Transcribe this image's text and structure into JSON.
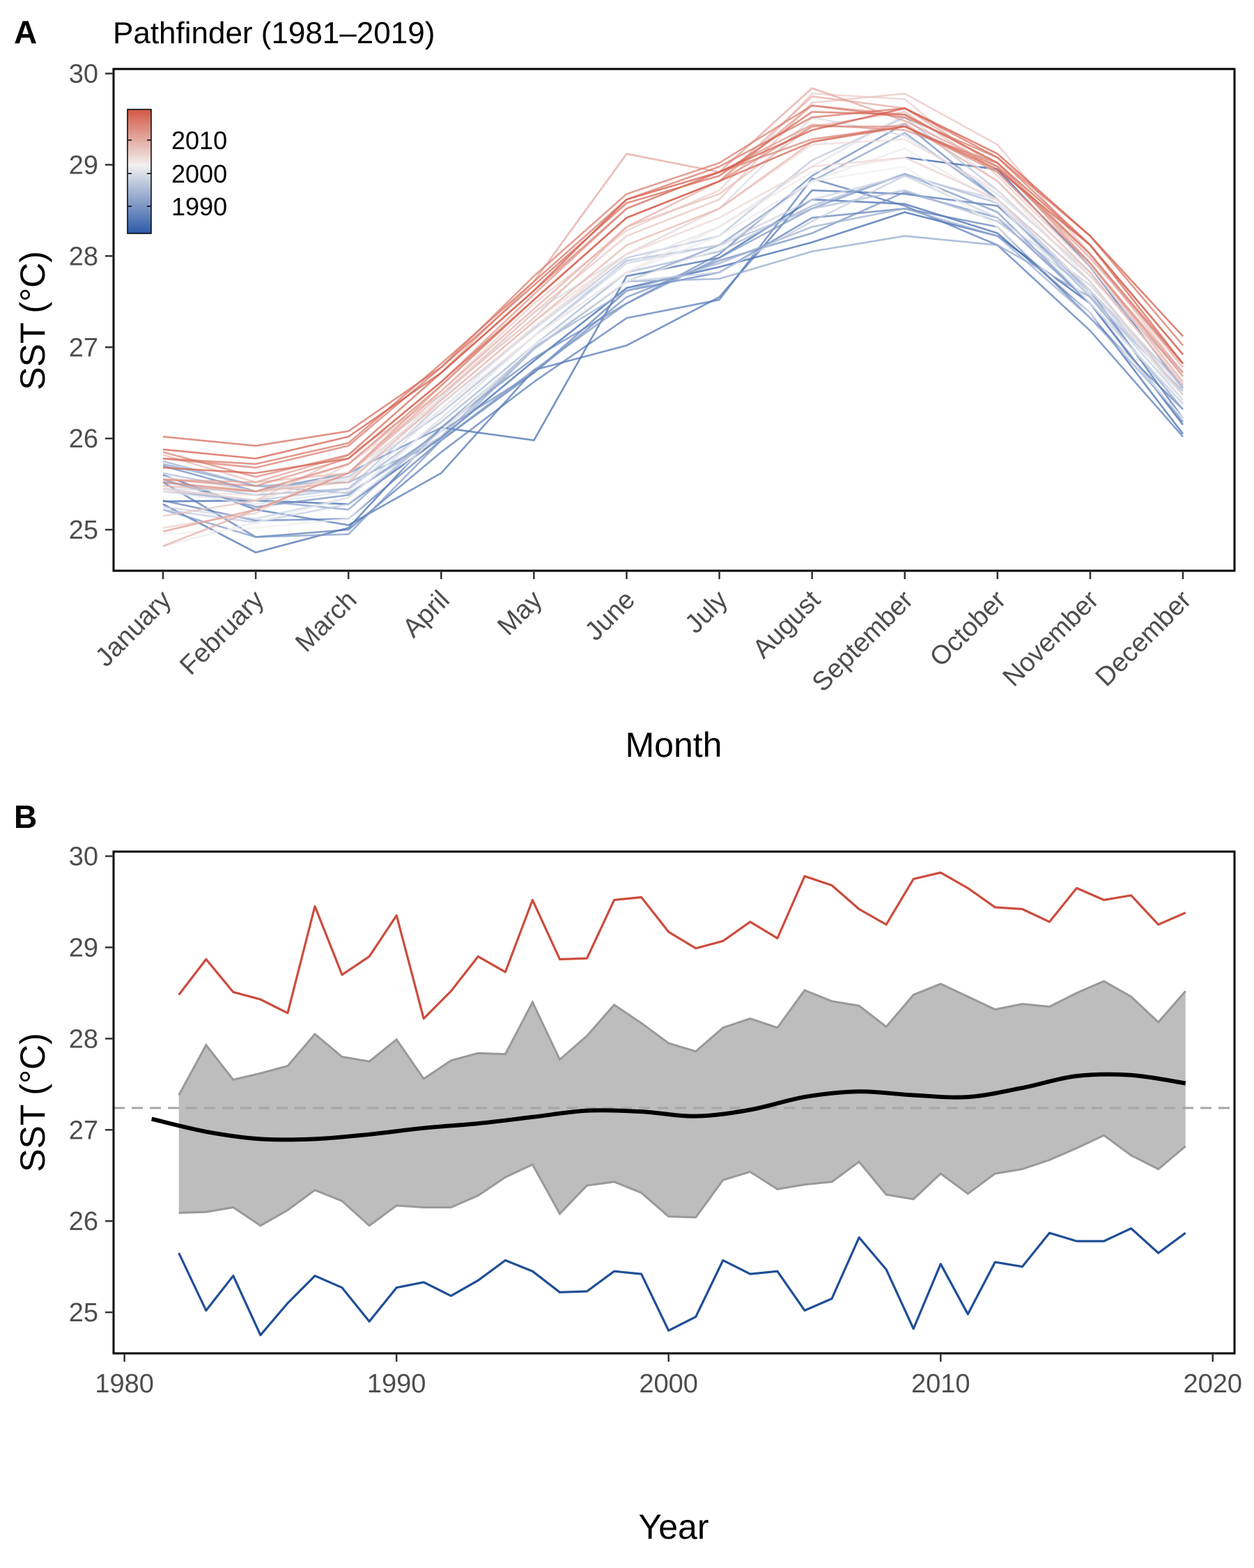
{
  "chart_data": [
    {
      "panel": "A",
      "type": "line",
      "title": "Pathfinder (1981–2019)",
      "xlabel": "Month",
      "ylabel": "SST (°C)",
      "ylim": [
        24.55,
        30.05
      ],
      "yticks": [
        25,
        26,
        27,
        28,
        29,
        30
      ],
      "categories": [
        "January",
        "February",
        "March",
        "April",
        "May",
        "June",
        "July",
        "August",
        "September",
        "October",
        "November",
        "December"
      ],
      "legend": {
        "type": "colorbar",
        "position": "top-left",
        "labels": [
          "2010",
          "2000",
          "1990"
        ],
        "low_color": "#2c5aa8",
        "mid_color": "#f2f0f0",
        "high_color": "#d35845"
      },
      "grid": false,
      "series": [
        {
          "year": 1981,
          "values": [
            null,
            null,
            null,
            null,
            null,
            null,
            null,
            null,
            29.08,
            28.95,
            27.88,
            26.55
          ]
        },
        {
          "year": 1982,
          "values": [
            25.31,
            25.32,
            25.28,
            26.01,
            26.85,
            27.65,
            27.88,
            28.15,
            28.48,
            28.22,
            27.48,
            26.15
          ]
        },
        {
          "year": 1983,
          "values": [
            25.28,
            24.75,
            25.02,
            26.12,
            25.98,
            27.78,
            27.98,
            28.62,
            28.57,
            28.25,
            27.38,
            26.05
          ]
        },
        {
          "year": 1984,
          "values": [
            25.6,
            25.22,
            25.05,
            25.62,
            26.75,
            27.02,
            27.55,
            28.72,
            28.68,
            28.55,
            27.62,
            26.22
          ]
        },
        {
          "year": 1985,
          "values": [
            25.52,
            24.92,
            25.0,
            25.85,
            26.62,
            27.32,
            27.52,
            28.85,
            28.55,
            28.12,
            27.18,
            26.02
          ]
        },
        {
          "year": 1986,
          "values": [
            25.32,
            25.1,
            25.12,
            25.98,
            26.72,
            27.62,
            27.82,
            28.42,
            28.52,
            28.32,
            27.32,
            26.32
          ]
        },
        {
          "year": 1987,
          "values": [
            25.7,
            25.42,
            25.62,
            26.12,
            26.88,
            27.48,
            28.02,
            28.88,
            29.45,
            28.62,
            27.62,
            26.48
          ]
        },
        {
          "year": 1988,
          "values": [
            25.55,
            25.25,
            25.38,
            26.08,
            26.72,
            27.55,
            27.95,
            28.25,
            28.7,
            28.42,
            27.48,
            26.18
          ]
        },
        {
          "year": 1989,
          "values": [
            25.22,
            24.92,
            24.95,
            25.98,
            26.75,
            27.48,
            27.98,
            28.52,
            28.9,
            28.48,
            27.48,
            26.38
          ]
        },
        {
          "year": 1990,
          "values": [
            25.42,
            25.32,
            25.22,
            26.12,
            26.98,
            27.72,
            28.12,
            28.82,
            29.35,
            28.62,
            27.72,
            26.48
          ]
        },
        {
          "year": 1991,
          "values": [
            25.72,
            25.48,
            25.52,
            25.98,
            26.98,
            27.72,
            27.75,
            28.05,
            28.22,
            28.12,
            27.55,
            26.32
          ]
        },
        {
          "year": 1992,
          "values": [
            25.75,
            25.48,
            25.4,
            26.02,
            27.0,
            27.62,
            27.92,
            28.32,
            28.52,
            28.22,
            27.32,
            26.22
          ]
        },
        {
          "year": 1993,
          "values": [
            25.52,
            25.38,
            25.45,
            26.18,
            27.02,
            27.82,
            28.05,
            28.55,
            28.9,
            28.58,
            27.55,
            26.52
          ]
        },
        {
          "year": 1994,
          "values": [
            25.62,
            25.42,
            25.58,
            26.28,
            27.12,
            27.95,
            28.12,
            28.52,
            28.72,
            28.38,
            27.62,
            26.58
          ]
        },
        {
          "year": 1995,
          "values": [
            25.45,
            25.32,
            25.45,
            26.38,
            27.2,
            27.98,
            28.22,
            29.05,
            29.52,
            28.72,
            27.78,
            26.72
          ]
        },
        {
          "year": 1996,
          "values": [
            25.22,
            25.08,
            25.28,
            26.08,
            26.98,
            27.72,
            27.82,
            28.38,
            28.88,
            28.62,
            27.58,
            26.42
          ]
        },
        {
          "year": 1997,
          "values": [
            25.25,
            25.12,
            25.35,
            26.22,
            27.12,
            27.92,
            28.12,
            28.62,
            28.88,
            28.42,
            27.68,
            26.55
          ]
        },
        {
          "year": 1998,
          "values": [
            25.45,
            25.42,
            25.55,
            26.45,
            27.38,
            28.02,
            28.52,
            29.52,
            29.32,
            28.68,
            27.82,
            26.58
          ]
        },
        {
          "year": 1999,
          "values": [
            25.42,
            25.28,
            25.42,
            26.32,
            27.22,
            27.92,
            28.32,
            28.98,
            29.55,
            28.82,
            27.72,
            26.42
          ]
        },
        {
          "year": 2000,
          "values": [
            24.82,
            25.08,
            25.35,
            26.22,
            27.12,
            27.82,
            28.22,
            28.82,
            29.18,
            28.58,
            27.48,
            26.38
          ]
        },
        {
          "year": 2001,
          "values": [
            24.95,
            25.02,
            25.12,
            26.08,
            27.02,
            27.72,
            28.08,
            28.82,
            28.98,
            28.32,
            27.38,
            26.22
          ]
        },
        {
          "year": 2002,
          "values": [
            25.58,
            25.42,
            25.55,
            26.32,
            27.12,
            27.82,
            28.32,
            28.92,
            29.08,
            28.62,
            27.62,
            26.48
          ]
        },
        {
          "year": 2003,
          "values": [
            25.42,
            25.38,
            25.72,
            26.42,
            27.28,
            28.02,
            28.52,
            29.22,
            29.28,
            28.72,
            27.78,
            26.62
          ]
        },
        {
          "year": 2004,
          "values": [
            25.45,
            25.32,
            25.62,
            26.38,
            27.22,
            28.02,
            28.42,
            28.98,
            29.08,
            28.62,
            27.72,
            26.48
          ]
        },
        {
          "year": 2005,
          "values": [
            25.02,
            25.18,
            25.72,
            26.52,
            27.48,
            28.28,
            28.72,
            29.78,
            29.72,
            28.88,
            27.88,
            26.62
          ]
        },
        {
          "year": 2006,
          "values": [
            25.15,
            25.32,
            25.82,
            26.48,
            27.38,
            28.22,
            28.62,
            29.68,
            29.78,
            29.22,
            28.02,
            26.72
          ]
        },
        {
          "year": 2007,
          "values": [
            25.82,
            25.52,
            25.62,
            26.48,
            27.32,
            28.32,
            28.68,
            29.42,
            29.58,
            28.92,
            27.92,
            26.62
          ]
        },
        {
          "year": 2008,
          "values": [
            25.48,
            25.42,
            25.52,
            26.42,
            27.28,
            28.12,
            28.52,
            29.25,
            29.45,
            28.82,
            27.82,
            26.58
          ]
        },
        {
          "year": 2009,
          "values": [
            24.82,
            25.22,
            25.62,
            26.52,
            27.42,
            28.32,
            28.82,
            29.75,
            29.62,
            28.98,
            28.02,
            26.78
          ]
        },
        {
          "year": 2010,
          "values": [
            25.55,
            25.52,
            25.82,
            26.72,
            27.72,
            29.12,
            28.92,
            29.84,
            29.48,
            28.98,
            27.98,
            26.82
          ]
        },
        {
          "year": 2011,
          "values": [
            24.98,
            25.22,
            25.62,
            26.58,
            27.52,
            28.42,
            28.82,
            29.65,
            29.55,
            29.02,
            27.92,
            26.72
          ]
        },
        {
          "year": 2012,
          "values": [
            25.55,
            25.48,
            25.78,
            26.62,
            27.58,
            28.52,
            28.92,
            29.44,
            29.38,
            29.02,
            28.02,
            26.82
          ]
        },
        {
          "year": 2013,
          "values": [
            25.52,
            25.42,
            25.72,
            26.58,
            27.52,
            28.42,
            28.82,
            29.42,
            29.42,
            28.92,
            27.92,
            26.68
          ]
        },
        {
          "year": 2014,
          "values": [
            25.85,
            25.58,
            25.82,
            26.72,
            27.62,
            28.52,
            28.92,
            29.28,
            29.42,
            28.98,
            28.02,
            26.82
          ]
        },
        {
          "year": 2015,
          "values": [
            25.78,
            25.68,
            25.92,
            26.78,
            27.78,
            28.68,
            29.02,
            29.65,
            29.52,
            29.08,
            28.12,
            26.92
          ]
        },
        {
          "year": 2016,
          "values": [
            25.78,
            25.72,
            25.95,
            26.82,
            27.72,
            28.62,
            28.98,
            29.52,
            29.62,
            29.08,
            28.22,
            27.02
          ]
        },
        {
          "year": 2017,
          "values": [
            26.02,
            25.92,
            26.08,
            26.78,
            27.68,
            28.58,
            28.88,
            29.58,
            29.55,
            29.02,
            28.12,
            26.92
          ]
        },
        {
          "year": 2018,
          "values": [
            25.68,
            25.62,
            25.78,
            26.62,
            27.52,
            28.42,
            28.82,
            29.25,
            29.42,
            28.95,
            28.12,
            26.82
          ]
        },
        {
          "year": 2019,
          "values": [
            25.88,
            25.78,
            26.02,
            26.72,
            27.62,
            28.62,
            28.92,
            29.38,
            29.62,
            29.12,
            28.22,
            27.12
          ]
        }
      ]
    },
    {
      "panel": "B",
      "type": "line",
      "title": "",
      "xlabel": "Year",
      "ylabel": "SST (°C)",
      "ylim": [
        24.55,
        30.05
      ],
      "yticks": [
        25,
        26,
        27,
        28,
        29,
        30
      ],
      "xlim": [
        1979.6,
        2020.8
      ],
      "xticks": [
        1980,
        1990,
        2000,
        2010,
        2020
      ],
      "grid": false,
      "x": [
        1982,
        1983,
        1984,
        1985,
        1986,
        1987,
        1988,
        1989,
        1990,
        1991,
        1992,
        1993,
        1994,
        1995,
        1996,
        1997,
        1998,
        1999,
        2000,
        2001,
        2002,
        2003,
        2004,
        2005,
        2006,
        2007,
        2008,
        2009,
        2010,
        2011,
        2012,
        2013,
        2014,
        2015,
        2016,
        2017,
        2018,
        2019
      ],
      "max_values": [
        28.48,
        28.87,
        28.51,
        28.43,
        28.28,
        29.45,
        28.7,
        28.9,
        29.35,
        28.22,
        28.52,
        28.9,
        28.73,
        29.52,
        28.87,
        28.88,
        29.52,
        29.55,
        29.17,
        28.99,
        29.07,
        29.28,
        29.1,
        29.78,
        29.68,
        29.42,
        29.25,
        29.75,
        29.82,
        29.65,
        29.44,
        29.42,
        29.28,
        29.65,
        29.52,
        29.57,
        29.25,
        29.38
      ],
      "min_values": [
        25.65,
        25.02,
        25.4,
        24.75,
        25.1,
        25.4,
        25.27,
        24.9,
        25.27,
        25.33,
        25.18,
        25.35,
        25.57,
        25.45,
        25.22,
        25.23,
        25.45,
        25.42,
        24.8,
        24.95,
        25.57,
        25.42,
        25.45,
        25.02,
        25.15,
        25.82,
        25.47,
        24.82,
        25.53,
        24.98,
        25.55,
        25.5,
        25.87,
        25.78,
        25.78,
        25.92,
        25.65,
        25.87
      ],
      "band_upper": [
        27.38,
        27.93,
        27.55,
        27.62,
        27.7,
        28.05,
        27.8,
        27.75,
        27.99,
        27.56,
        27.76,
        27.84,
        27.83,
        28.4,
        27.77,
        28.03,
        28.37,
        28.17,
        27.95,
        27.86,
        28.12,
        28.22,
        28.12,
        28.53,
        28.41,
        28.36,
        28.13,
        28.48,
        28.6,
        28.46,
        28.32,
        28.38,
        28.35,
        28.5,
        28.63,
        28.46,
        28.18,
        28.52
      ],
      "band_lower": [
        26.09,
        26.1,
        26.15,
        25.95,
        26.12,
        26.34,
        26.22,
        25.95,
        26.17,
        26.15,
        26.15,
        26.28,
        26.48,
        26.62,
        26.08,
        26.39,
        26.43,
        26.31,
        26.05,
        26.04,
        26.45,
        26.54,
        26.35,
        26.4,
        26.43,
        26.65,
        26.29,
        26.24,
        26.52,
        26.3,
        26.52,
        26.57,
        26.67,
        26.8,
        26.94,
        26.72,
        26.57,
        26.82
      ],
      "smooth_x": [
        1981,
        1983,
        1985,
        1987,
        1989,
        1991,
        1993,
        1995,
        1997,
        1999,
        2001,
        2003,
        2005,
        2007,
        2009,
        2011,
        2013,
        2015,
        2017,
        2019
      ],
      "smooth_y": [
        27.12,
        26.98,
        26.9,
        26.9,
        26.95,
        27.02,
        27.07,
        27.14,
        27.21,
        27.2,
        27.15,
        27.22,
        27.36,
        27.42,
        27.38,
        27.36,
        27.46,
        27.59,
        27.6,
        27.51
      ],
      "reference_line": 27.24,
      "colors": {
        "max": "#cc4b3c",
        "min": "#1f4e96",
        "band_fill": "#bdbdbd",
        "band_edge": "#999999",
        "smooth": "#000000",
        "reference": "#a6a6a6"
      }
    }
  ]
}
